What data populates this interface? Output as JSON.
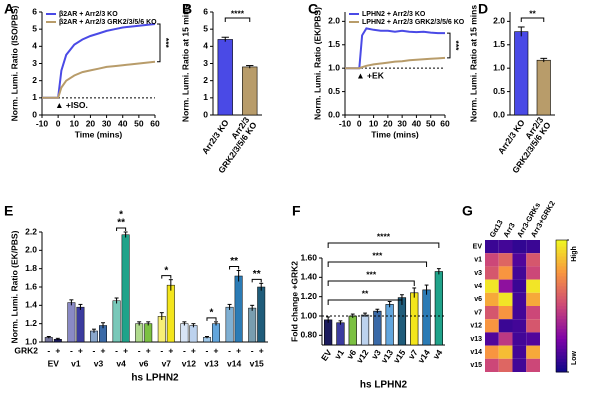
{
  "chart_data": [
    {
      "type": "line",
      "panel": "A",
      "x": [
        -10,
        -5,
        0,
        2,
        5,
        10,
        15,
        20,
        25,
        30,
        35,
        40,
        45,
        50,
        55,
        60
      ],
      "series": [
        {
          "name": "β2AR + Arr2/3 KO",
          "color": "#4a4ae6",
          "values": [
            1,
            1,
            1,
            2.6,
            3.5,
            4.1,
            4.4,
            4.6,
            4.75,
            4.9,
            5.0,
            5.1,
            5.15,
            5.2,
            5.25,
            5.3
          ]
        },
        {
          "name": "β2AR + Arr2/3 GRK2/3/5/6 KO",
          "color": "#b89c6a",
          "values": [
            1,
            1,
            1,
            1.6,
            2.0,
            2.3,
            2.5,
            2.6,
            2.7,
            2.8,
            2.85,
            2.9,
            2.95,
            3.0,
            3.05,
            3.1
          ]
        }
      ],
      "xlim": [
        -10,
        60
      ],
      "xticks": [
        -10,
        0,
        10,
        20,
        30,
        40,
        50,
        60
      ],
      "ylim": [
        0,
        6
      ],
      "yticks": [
        0,
        1,
        2,
        3,
        4,
        5,
        6
      ],
      "xlabel": "Time (mins)",
      "ylabel": "Norm. Lumi. Ratio (ISO/PBS)",
      "reference_line": 1,
      "stimulus": "▲ +ISO.",
      "significance": "***"
    },
    {
      "type": "bar",
      "panel": "B",
      "categories": [
        "Arr2/3 KO",
        [
          "Arr2/3",
          "GRK2/3/5/6 KO"
        ]
      ],
      "values": [
        4.4,
        2.8
      ],
      "errors": [
        0.13,
        0.08
      ],
      "colors": [
        "#4a4ae6",
        "#b89c6a"
      ],
      "ylim": [
        0,
        6
      ],
      "yticks": [
        0,
        1,
        2,
        3,
        4,
        5,
        6
      ],
      "ylabel": "Norm. Lumi. Ratio at 15 mins",
      "significance": "****"
    },
    {
      "type": "line",
      "panel": "C",
      "x": [
        -10,
        -5,
        0,
        2,
        5,
        10,
        15,
        20,
        25,
        30,
        35,
        40,
        45,
        50,
        55,
        60
      ],
      "series": [
        {
          "name": "LPHN2 + Arr2/3 KO",
          "color": "#4a4ae6",
          "values": [
            1,
            1,
            1,
            1.7,
            1.85,
            1.82,
            1.8,
            1.8,
            1.78,
            1.8,
            1.78,
            1.77,
            1.78,
            1.76,
            1.75,
            1.75
          ]
        },
        {
          "name": "LPHN2 + Arr2/3 GRK2/3/5/6 KO",
          "color": "#b89c6a",
          "values": [
            1,
            1,
            1,
            1.02,
            1.05,
            1.08,
            1.1,
            1.12,
            1.14,
            1.15,
            1.17,
            1.18,
            1.19,
            1.2,
            1.21,
            1.22
          ]
        }
      ],
      "xlim": [
        -10,
        60
      ],
      "xticks": [
        -10,
        0,
        10,
        20,
        30,
        40,
        50,
        60
      ],
      "ylim": [
        0,
        2.2
      ],
      "yticks": [
        {
          "value": 0,
          "label": "0.0"
        },
        0.5,
        {
          "value": 1,
          "label": "1.0"
        },
        1.5,
        {
          "value": 2,
          "label": "2.0"
        }
      ],
      "xlabel": "Time (mins)",
      "ylabel": "Norm. Lumi. Ratio (EK/PBS)",
      "reference_line": 1,
      "stimulus": "▲ +EK",
      "significance": "***"
    },
    {
      "type": "bar",
      "panel": "D",
      "categories": [
        "Arr2/3 KO",
        [
          "Arr2/3",
          "GRK2/3/5/6 KO"
        ]
      ],
      "values": [
        1.78,
        1.17
      ],
      "errors": [
        0.1,
        0.04
      ],
      "colors": [
        "#4a4ae6",
        "#b89c6a"
      ],
      "ylim": [
        0,
        2.2
      ],
      "yticks": [
        {
          "value": 0,
          "label": "0.0"
        },
        0.5,
        {
          "value": 1,
          "label": "1.0"
        },
        1.5,
        {
          "value": 2,
          "label": "2.0"
        }
      ],
      "ylabel": "Norm. Lumi. Ratio at 15 mins",
      "significance": "**"
    },
    {
      "type": "grouped_bar",
      "panel": "E",
      "categories": [
        "EV",
        "v1",
        "v3",
        "v4",
        "v6",
        "v7",
        "v12",
        "v13",
        "v14",
        "v15"
      ],
      "colors": [
        "#1b1b5e",
        "#3b3b9e",
        "#3a6aa8",
        "#20a38a",
        "#7cc142",
        "#f3e51c",
        "#bcd2ee",
        "#62a6dd",
        "#2b7bb5",
        "#1f5c7a"
      ],
      "group_label": "GRK2",
      "series": [
        {
          "name": "-",
          "values": [
            1.05,
            1.43,
            1.12,
            1.45,
            1.2,
            1.28,
            1.2,
            1.05,
            1.38,
            1.37
          ],
          "errors": [
            0.01,
            0.03,
            0.02,
            0.03,
            0.02,
            0.04,
            0.02,
            0.01,
            0.03,
            0.03
          ]
        },
        {
          "name": "+",
          "values": [
            1.03,
            1.38,
            1.18,
            2.17,
            1.2,
            1.62,
            1.18,
            1.2,
            1.72,
            1.6
          ],
          "errors": [
            0.01,
            0.03,
            0.03,
            0.03,
            0.02,
            0.06,
            0.02,
            0.02,
            0.06,
            0.04
          ]
        }
      ],
      "ylim": [
        1.0,
        2.2
      ],
      "yticks": [
        {
          "value": 1,
          "label": "1.0"
        },
        1.2,
        1.4,
        1.6,
        1.8,
        {
          "value": 2,
          "label": "2.0"
        },
        2.2
      ],
      "xlabel": "hs LPHN2",
      "ylabel": "Norm. Lumi. Ratio (EK/PBS)",
      "annotations": [
        {
          "category": 3,
          "text": "**"
        },
        {
          "category": 3,
          "text": "*"
        },
        {
          "category": 5,
          "text": "*"
        },
        {
          "category": 7,
          "text": "*"
        },
        {
          "category": 8,
          "text": "**"
        },
        {
          "category": 9,
          "text": "**"
        }
      ]
    },
    {
      "type": "bar",
      "panel": "F",
      "categories": [
        "EV",
        "v1",
        "v6",
        "v12",
        "v3",
        "v13",
        "v15",
        "v7",
        "v14",
        "v4"
      ],
      "values": [
        0.96,
        0.93,
        1.0,
        1.01,
        1.05,
        1.12,
        1.19,
        1.24,
        1.27,
        1.46
      ],
      "errors": [
        0.03,
        0.02,
        0.02,
        0.02,
        0.02,
        0.03,
        0.03,
        0.05,
        0.05,
        0.03
      ],
      "colors": [
        "#1b1b5e",
        "#3b3b9e",
        "#7cc142",
        "#bcd2ee",
        "#3a6aa8",
        "#62a6dd",
        "#1f5c7a",
        "#f3e51c",
        "#2b7bb5",
        "#20a38a"
      ],
      "ylim": [
        0.7,
        1.6
      ],
      "yticks": [
        {
          "value": 0.8,
          "label": "0.80"
        },
        {
          "value": 1,
          "label": "1.00"
        },
        {
          "value": 1.2,
          "label": "1.20"
        },
        {
          "value": 1.4,
          "label": "1.40"
        },
        {
          "value": 1.6,
          "label": "1.60"
        }
      ],
      "xlabel": "hs LPHN2",
      "ylabel": "Fold change +GRK2",
      "reference_line": 1,
      "comparisons": [
        {
          "from": 0,
          "to": 6,
          "text": "**"
        },
        {
          "from": 0,
          "to": 7,
          "text": "***"
        },
        {
          "from": 0,
          "to": 8,
          "text": "***"
        },
        {
          "from": 0,
          "to": 9,
          "text": "****"
        }
      ]
    },
    {
      "type": "heatmap",
      "panel": "G",
      "rows": [
        "EV",
        "v1",
        "v3",
        "v4",
        "v6",
        "v7",
        "v12",
        "v13",
        "v14",
        "v15"
      ],
      "columns": [
        "Gα13",
        "Arr3",
        "Arr3-GRKs",
        "Arr3+GRK2"
      ],
      "values": [
        [
          0.1,
          0.12,
          0.08,
          0.1
        ],
        [
          0.5,
          0.6,
          0.15,
          0.55
        ],
        [
          0.55,
          0.75,
          0.12,
          0.5
        ],
        [
          0.95,
          0.3,
          0.1,
          0.95
        ],
        [
          0.8,
          0.95,
          0.12,
          0.8
        ],
        [
          0.55,
          0.75,
          0.12,
          0.5
        ],
        [
          0.75,
          0.1,
          0.12,
          0.55
        ],
        [
          0.15,
          0.45,
          0.12,
          0.15
        ],
        [
          0.75,
          0.85,
          0.12,
          0.8
        ],
        [
          0.5,
          0.6,
          0.12,
          0.5
        ]
      ],
      "colorscale": [
        "#0d0887",
        "#7e03a8",
        "#cc4778",
        "#f89540",
        "#f0f921"
      ],
      "zlim": [
        0,
        1
      ],
      "colorbar_ticks": [
        {
          "value": 1,
          "label": "High"
        },
        {
          "value": 0,
          "label": "Low"
        }
      ]
    }
  ]
}
